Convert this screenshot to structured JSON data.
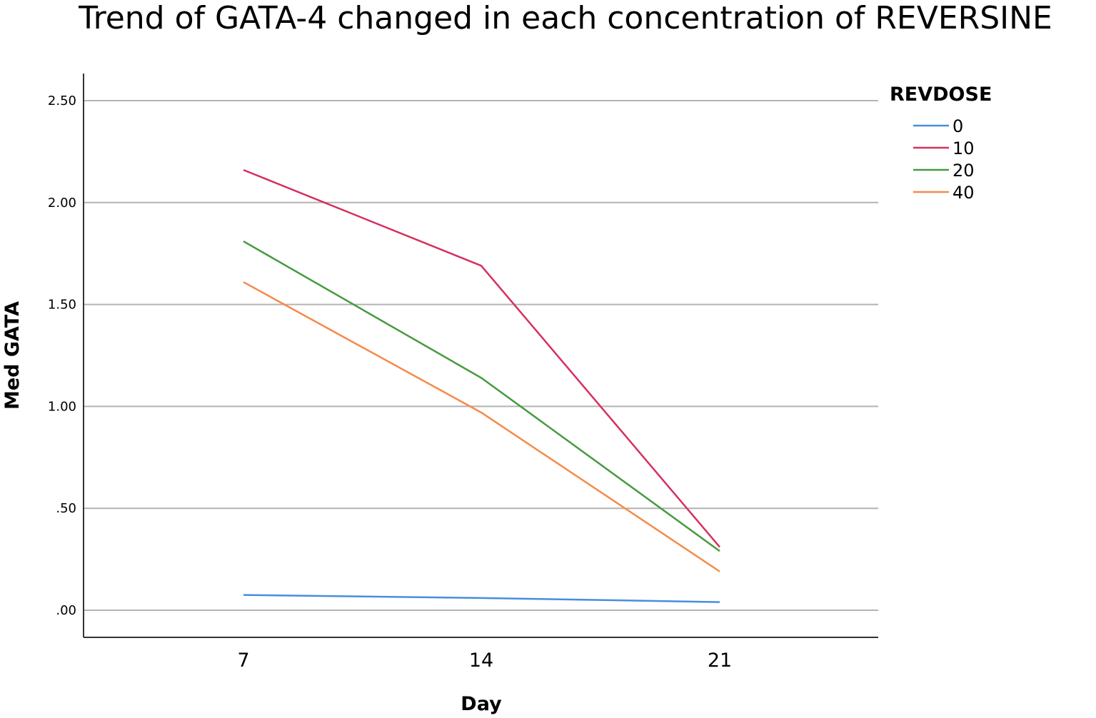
{
  "chart_data": {
    "type": "line",
    "title": "Trend of GATA-4 changed in each concentration of REVERSINE",
    "xlabel": "Day",
    "ylabel": "Med GATA",
    "x": [
      7,
      14,
      21
    ],
    "ylim": [
      -0.13,
      2.65
    ],
    "yticks": [
      0,
      0.5,
      1.0,
      1.5,
      2.0,
      2.5
    ],
    "ytick_labels": [
      ".00",
      ".50",
      "1.00",
      "1.50",
      "2.00",
      "2.50"
    ],
    "grid": "horizontal",
    "legend_title": "REVDOSE",
    "legend_position": "top-right",
    "series": [
      {
        "name": "0",
        "color": "#4a8ddc",
        "values": [
          0.075,
          0.06,
          0.04
        ]
      },
      {
        "name": "10",
        "color": "#d6305e",
        "values": [
          2.16,
          1.69,
          0.31
        ]
      },
      {
        "name": "20",
        "color": "#479a3f",
        "values": [
          1.81,
          1.14,
          0.29
        ]
      },
      {
        "name": "40",
        "color": "#f58a4b",
        "values": [
          1.61,
          0.97,
          0.19
        ]
      }
    ]
  }
}
